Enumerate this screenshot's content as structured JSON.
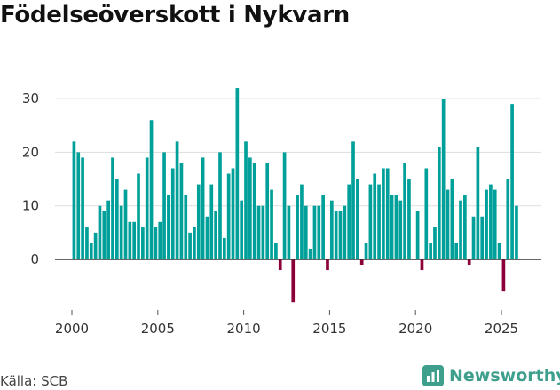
{
  "title": "Födelseöverskott i Nykvarn",
  "source": "Källa: SCB",
  "brand": "Newsworthy",
  "colors": {
    "positive": "#00a09a",
    "negative": "#8c0039",
    "grid": "#dddddd",
    "zero": "#333333",
    "brand": "#3f9f8d"
  },
  "chart_data": {
    "type": "bar",
    "title": "Födelseöverskott i Nykvarn",
    "xlabel": "",
    "ylabel": "",
    "ylim": [
      -8,
      33
    ],
    "yticks": [
      0,
      10,
      20,
      30
    ],
    "xticks": [
      2000,
      2005,
      2010,
      2015,
      2020,
      2025
    ],
    "xrange": [
      2000,
      2026.25
    ],
    "grid": true,
    "frequency": "quarterly",
    "start": "2000 Q1",
    "values": [
      22,
      20,
      19,
      6,
      3,
      5,
      10,
      9,
      11,
      19,
      15,
      10,
      13,
      7,
      7,
      16,
      6,
      19,
      26,
      6,
      7,
      20,
      12,
      17,
      22,
      18,
      12,
      5,
      6,
      14,
      19,
      8,
      14,
      9,
      20,
      4,
      16,
      17,
      32,
      11,
      22,
      19,
      18,
      10,
      10,
      18,
      13,
      3,
      -2,
      20,
      10,
      -8,
      12,
      14,
      10,
      2,
      10,
      10,
      12,
      -2,
      11,
      9,
      9,
      10,
      14,
      22,
      15,
      -1,
      3,
      14,
      16,
      14,
      17,
      17,
      12,
      12,
      11,
      18,
      15,
      0,
      9,
      -2,
      17,
      3,
      6,
      21,
      30,
      13,
      15,
      3,
      11,
      12,
      -1,
      8,
      21,
      8,
      13,
      14,
      13,
      3,
      -6,
      15,
      29,
      10
    ]
  }
}
